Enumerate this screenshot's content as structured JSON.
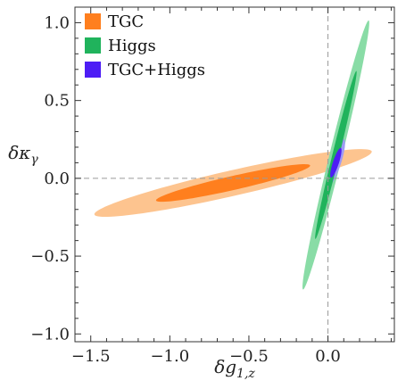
{
  "chart_data": {
    "type": "contour",
    "xlabel": "δg1,z",
    "ylabel": "δκγ",
    "xlim": [
      -1.6,
      0.42
    ],
    "ylim": [
      -1.05,
      1.1
    ],
    "x_ticks": [
      -1.5,
      -1.0,
      -0.5,
      0.0
    ],
    "x_tick_labels": [
      "−1.5",
      "−1.0",
      "−0.5",
      "0.0"
    ],
    "y_ticks": [
      -1.0,
      -0.5,
      0.0,
      0.5,
      1.0
    ],
    "y_tick_labels": [
      "−1.0",
      "−0.5",
      "0.0",
      "0.5",
      "1.0"
    ],
    "reference_lines": {
      "x": 0.0,
      "y": 0.0,
      "style": "dashed"
    },
    "legend_position": "top-left",
    "series": [
      {
        "name": "TGC",
        "color": "#ff7f1e",
        "regions": [
          {
            "level": "outer",
            "color": "#fdc48f",
            "center": [
              -0.6,
              -0.03
            ],
            "semi_major": 0.9,
            "semi_minor": 0.082,
            "angle_deg": 13
          },
          {
            "level": "inner",
            "color": "#ff7f1e",
            "center": [
              -0.6,
              -0.03
            ],
            "semi_major": 0.5,
            "semi_minor": 0.045,
            "angle_deg": 13
          }
        ]
      },
      {
        "name": "Higgs",
        "color": "#20b35c",
        "regions": [
          {
            "level": "outer",
            "color": "#89dca6",
            "center": [
              0.05,
              0.15
            ],
            "semi_major": 0.889,
            "semi_minor": 0.04,
            "angle_deg": 76.5
          },
          {
            "level": "inner",
            "color": "#20b35c",
            "center": [
              0.05,
              0.15
            ],
            "semi_major": 0.555,
            "semi_minor": 0.022,
            "angle_deg": 76.5
          }
        ]
      },
      {
        "name": "TGC+Higgs",
        "color": "#4d1df5",
        "regions": [
          {
            "level": "outer",
            "color": "#9f9bf5",
            "center": [
              0.05,
              0.1
            ],
            "semi_major": 0.16,
            "semi_minor": 0.032,
            "angle_deg": 72
          },
          {
            "level": "inner",
            "color": "#4d1df5",
            "center": [
              0.05,
              0.1
            ],
            "semi_major": 0.1,
            "semi_minor": 0.019,
            "angle_deg": 72
          }
        ]
      }
    ]
  }
}
